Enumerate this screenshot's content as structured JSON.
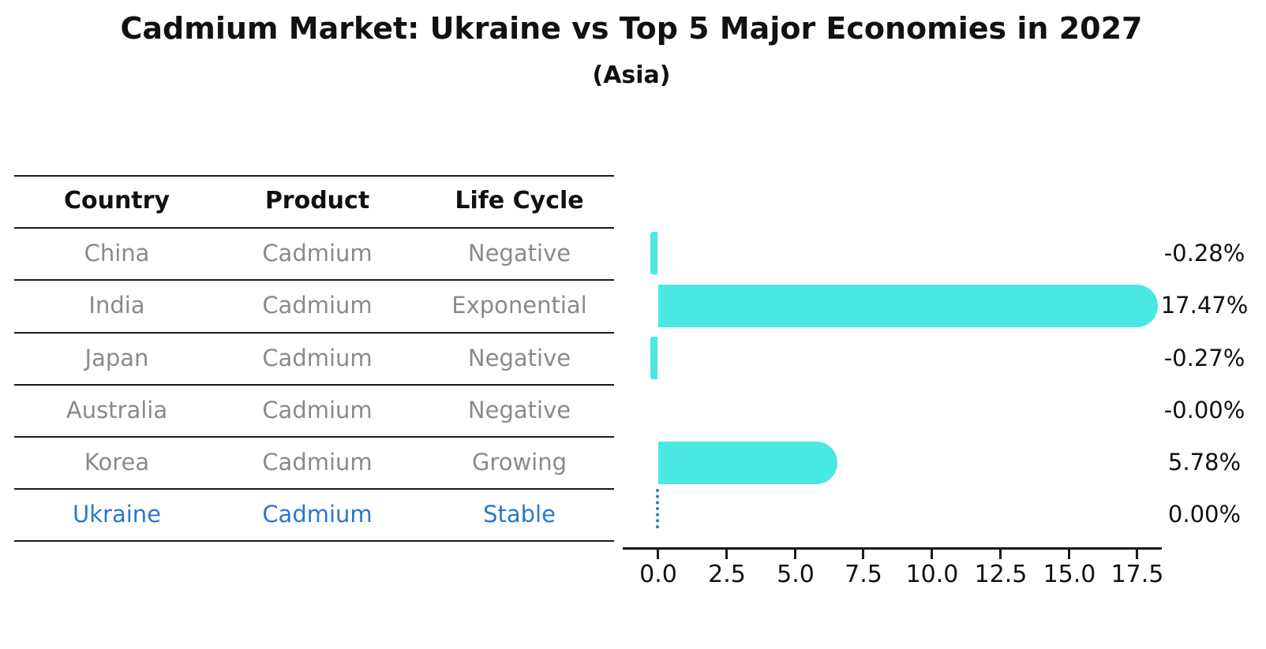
{
  "title": "Cadmium Market: Ukraine vs Top 5 Major Economies in 2027",
  "subtitle": "(Asia)",
  "table": {
    "headers": [
      "Country",
      "Product",
      "Life Cycle"
    ],
    "rows": [
      {
        "country": "China",
        "product": "Cadmium",
        "life_cycle": "Negative",
        "highlight": false
      },
      {
        "country": "India",
        "product": "Cadmium",
        "life_cycle": "Exponential",
        "highlight": false
      },
      {
        "country": "Japan",
        "product": "Cadmium",
        "life_cycle": "Negative",
        "highlight": false
      },
      {
        "country": "Australia",
        "product": "Cadmium",
        "life_cycle": "Negative",
        "highlight": false
      },
      {
        "country": "Korea",
        "product": "Cadmium",
        "life_cycle": "Growing",
        "highlight": false
      },
      {
        "country": "Ukraine",
        "product": "Cadmium",
        "life_cycle": "Stable",
        "highlight": true
      }
    ]
  },
  "chart_data": {
    "type": "bar",
    "orientation": "horizontal",
    "title": "Cadmium Market: Ukraine vs Top 5 Major Economies in 2027 (Asia)",
    "categories": [
      "China",
      "India",
      "Japan",
      "Australia",
      "Korea",
      "Ukraine"
    ],
    "values": [
      -0.28,
      17.47,
      -0.27,
      -0.0,
      5.78,
      0.0
    ],
    "labels": [
      "-0.28%",
      "17.47%",
      "-0.27%",
      "-0.00%",
      "5.78%",
      "0.00%"
    ],
    "x_ticks": [
      "0.0",
      "2.5",
      "5.0",
      "7.5",
      "10.0",
      "12.5",
      "15.0",
      "17.5"
    ],
    "x_tick_values": [
      0.0,
      2.5,
      5.0,
      7.5,
      10.0,
      12.5,
      15.0,
      17.5
    ],
    "xlim": [
      -1.17,
      18.36
    ],
    "grid": false,
    "legend": "none",
    "bar_color": "#4ae8e2",
    "highlight_color": "#2878cd",
    "reference_line": {
      "category": "Ukraine",
      "value": 0.0,
      "style": "dotted",
      "color": "#2e79c0"
    }
  }
}
